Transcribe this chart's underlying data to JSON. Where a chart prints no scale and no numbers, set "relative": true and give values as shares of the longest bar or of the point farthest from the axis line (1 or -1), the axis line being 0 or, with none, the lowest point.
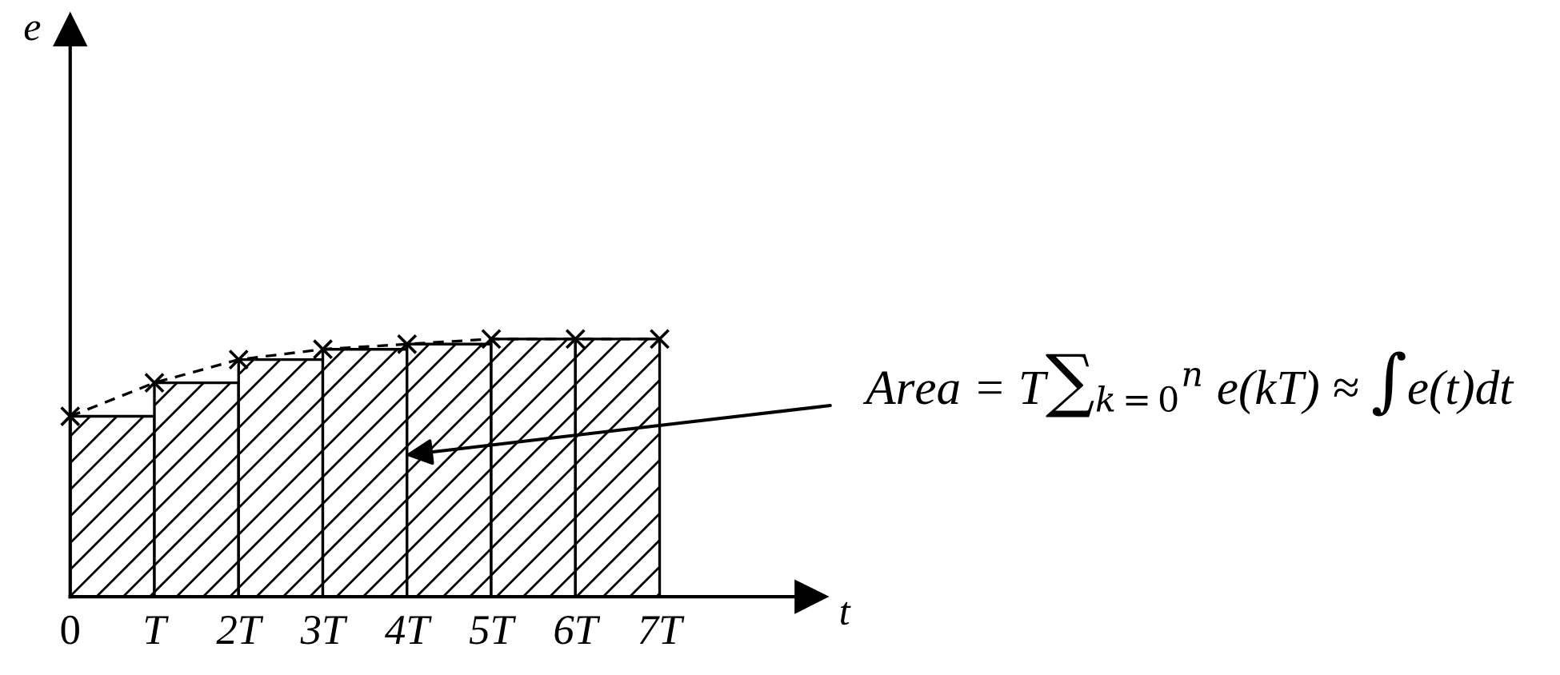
{
  "chart_data": {
    "type": "bar",
    "relative": true,
    "xlabel": "t",
    "xlim": [
      0,
      8.8
    ],
    "xticks": [
      {
        "value": 0,
        "label": "0"
      },
      {
        "value": 1,
        "label": "T"
      },
      {
        "value": 2,
        "label": "2T"
      },
      {
        "value": 3,
        "label": "3T"
      },
      {
        "value": 4,
        "label": "4T"
      },
      {
        "value": 5,
        "label": "5T"
      },
      {
        "value": 6,
        "label": "6T"
      },
      {
        "value": 7,
        "label": "7T"
      }
    ],
    "tick_labels": "x",
    "grid": false,
    "series": [
      {
        "color": "#000000",
        "x": [
          0.5,
          1.5,
          2.5,
          3.5,
          4.5,
          5.5,
          6.5
        ],
        "values": [
          0.7,
          0.83,
          0.92,
          0.96,
          0.98,
          1.0,
          1.0
        ]
      },
      {
        "type": "line",
        "color": "#000000",
        "marker": "cross",
        "line_style": "dashed",
        "x": [
          0,
          1,
          2,
          3,
          4,
          5,
          6,
          7
        ],
        "values": [
          0.7,
          0.83,
          0.92,
          0.96,
          0.98,
          1.0,
          1.0,
          1.0
        ]
      }
    ],
    "annotations": [
      "e",
      "Area = T∑$_{k=0}$$^{n}$ e(kT) ≈ ∫e(t)dt"
    ]
  }
}
